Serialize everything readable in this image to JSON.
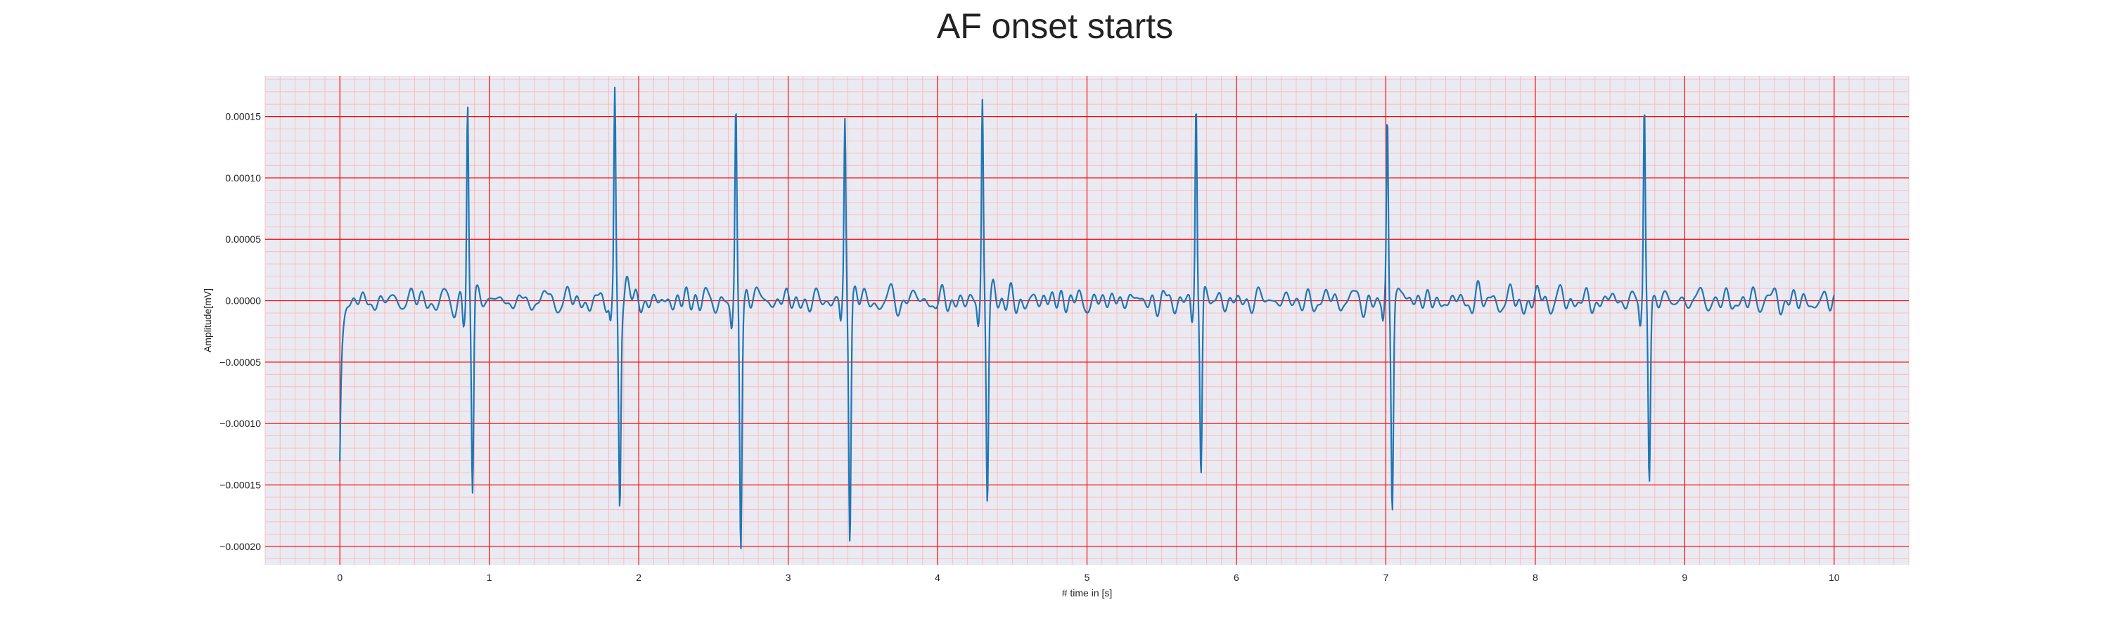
{
  "chart_data": {
    "type": "line",
    "title": "AF onset starts",
    "xlabel": "# time in [s]",
    "ylabel": "Amplitude[mV]",
    "xlim": [
      -0.5,
      10.5
    ],
    "ylim": [
      -0.000215,
      0.000183
    ],
    "x_ticks": [
      0,
      1,
      2,
      3,
      4,
      5,
      6,
      7,
      8,
      9,
      10
    ],
    "x_tick_labels": [
      "0",
      "1",
      "2",
      "3",
      "4",
      "5",
      "6",
      "7",
      "8",
      "9",
      "10"
    ],
    "y_ticks": [
      0.00015,
      0.0001,
      5e-05,
      0.0,
      -5e-05,
      -0.0001,
      -0.00015,
      -0.0002
    ],
    "y_tick_labels": [
      "0.00015",
      "0.00010",
      "0.00005",
      "0.00000",
      "−0.00005",
      "−0.00010",
      "−0.00015",
      "−0.00020"
    ],
    "grid": true,
    "series": [
      {
        "color": "#1f77b4",
        "beats": [
          {
            "t": 0.855,
            "peak": 0.000162,
            "trough": -0.000167
          },
          {
            "t": 1.84,
            "peak": 0.000166,
            "trough": -0.000164
          },
          {
            "t": 2.65,
            "peak": 0.000145,
            "trough": -0.000195
          },
          {
            "t": 3.38,
            "peak": 0.000141,
            "trough": -0.000192
          },
          {
            "t": 4.3,
            "peak": 0.000157,
            "trough": -0.000163
          },
          {
            "t": 5.73,
            "peak": 0.000163,
            "trough": -0.000149
          },
          {
            "t": 7.01,
            "peak": 0.000145,
            "trough": -0.000166
          },
          {
            "t": 8.73,
            "peak": 0.000156,
            "trough": -0.000151
          }
        ],
        "start": {
          "t": 0.0,
          "value": -0.00014
        },
        "end": {
          "t": 10.0,
          "value": -8e-06
        }
      }
    ],
    "colors": {
      "background": "#eaeaf2",
      "major_grid": "#ff0000",
      "minor_grid": "#ffb3b3",
      "line": "#1f77b4"
    }
  }
}
